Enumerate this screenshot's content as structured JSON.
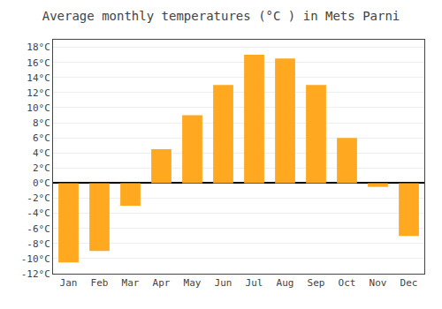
{
  "chart_data": {
    "type": "bar",
    "title": "Average monthly temperatures (°C ) in Mets Parni",
    "categories": [
      "Jan",
      "Feb",
      "Mar",
      "Apr",
      "May",
      "Jun",
      "Jul",
      "Aug",
      "Sep",
      "Oct",
      "Nov",
      "Dec"
    ],
    "values": [
      -10.5,
      -9.0,
      -3.0,
      4.5,
      9.0,
      13.0,
      17.0,
      16.5,
      13.0,
      6.0,
      -0.5,
      -7.0
    ],
    "color": "#FFA820",
    "ylim": [
      -12,
      19
    ],
    "yticks": [
      {
        "value": -12,
        "label": "-12°C"
      },
      {
        "value": -10,
        "label": "-10°C"
      },
      {
        "value": -8,
        "label": "-8°C"
      },
      {
        "value": -6,
        "label": "-6°C"
      },
      {
        "value": -4,
        "label": "-4°C"
      },
      {
        "value": -2,
        "label": "-2°C"
      },
      {
        "value": 0,
        "label": "0°C"
      },
      {
        "value": 2,
        "label": "2°C"
      },
      {
        "value": 4,
        "label": "4°C"
      },
      {
        "value": 6,
        "label": "6°C"
      },
      {
        "value": 8,
        "label": "8°C"
      },
      {
        "value": 10,
        "label": "10°C"
      },
      {
        "value": 12,
        "label": "12°C"
      },
      {
        "value": 14,
        "label": "14°C"
      },
      {
        "value": 16,
        "label": "16°C"
      },
      {
        "value": 18,
        "label": "18°C"
      }
    ],
    "grid": true
  }
}
